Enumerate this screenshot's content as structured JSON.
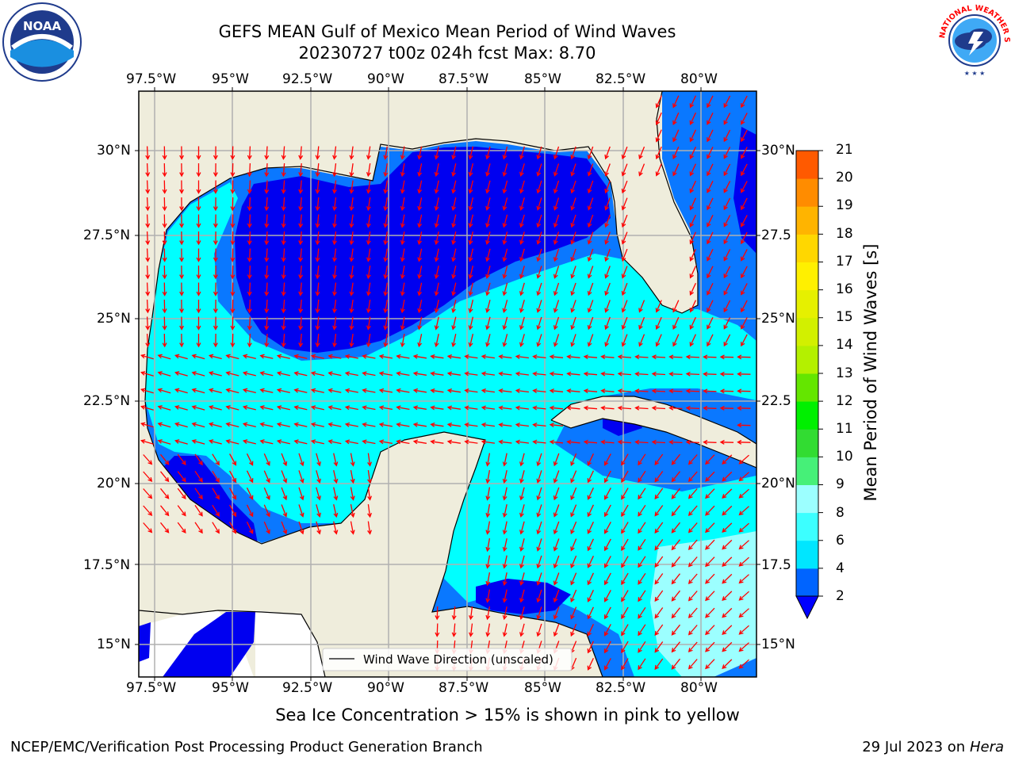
{
  "title_line1": "GEFS MEAN Gulf of Mexico Mean Period of Wind Waves",
  "title_line2": "20230727 t00z 024h fcst   Max: 8.70",
  "lon_labels": [
    "97.5°W",
    "95°W",
    "92.5°W",
    "90°W",
    "87.5°W",
    "85°W",
    "82.5°W",
    "80°W"
  ],
  "lat_labels_left": [
    "30°N",
    "27.5°N",
    "25°N",
    "22.5°N",
    "20°N",
    "17.5°N",
    "15°N"
  ],
  "lat_labels_right": [
    "30°N",
    "27.5",
    "25°N",
    "22.5",
    "20°N",
    "17.5",
    "15°N"
  ],
  "legend_label": "Wind Wave Direction (unscaled)",
  "colorbar": {
    "title": "Mean Period of Wind Waves [s]",
    "levels": [
      "2",
      "4",
      "6",
      "8",
      "9",
      "10",
      "11",
      "12",
      "13",
      "14",
      "15",
      "16",
      "17",
      "18",
      "19",
      "20",
      "21"
    ],
    "colors": [
      "#0064ff",
      "#00e6ff",
      "#3cffff",
      "#9cffff",
      "#46f078",
      "#32dc32",
      "#00f000",
      "#64e600",
      "#b4f000",
      "#d2f000",
      "#e6f000",
      "#fff000",
      "#ffd700",
      "#ffb400",
      "#ff8c00",
      "#ff5a00",
      "#ff3200",
      "#ff0000"
    ],
    "under_color": "#0000ff"
  },
  "field_colors": {
    "land": "#efeddc",
    "deep_blue": "#0000f0",
    "blue": "#0a78ff",
    "cyan": "#00ffff",
    "light_cyan": "#9cffff",
    "arrow": "#ff0000"
  },
  "ice_note": "Sea Ice Concentration > 15% is shown in pink to yellow",
  "footer_left": "NCEP/EMC/Verification Post Processing Product Generation Branch",
  "footer_right_date": "29 Jul 2023 on ",
  "footer_right_host": "Hera",
  "logos": {
    "noaa_text": "NOAA",
    "nws_text": "NATIONAL WEATHER SERVICE"
  }
}
